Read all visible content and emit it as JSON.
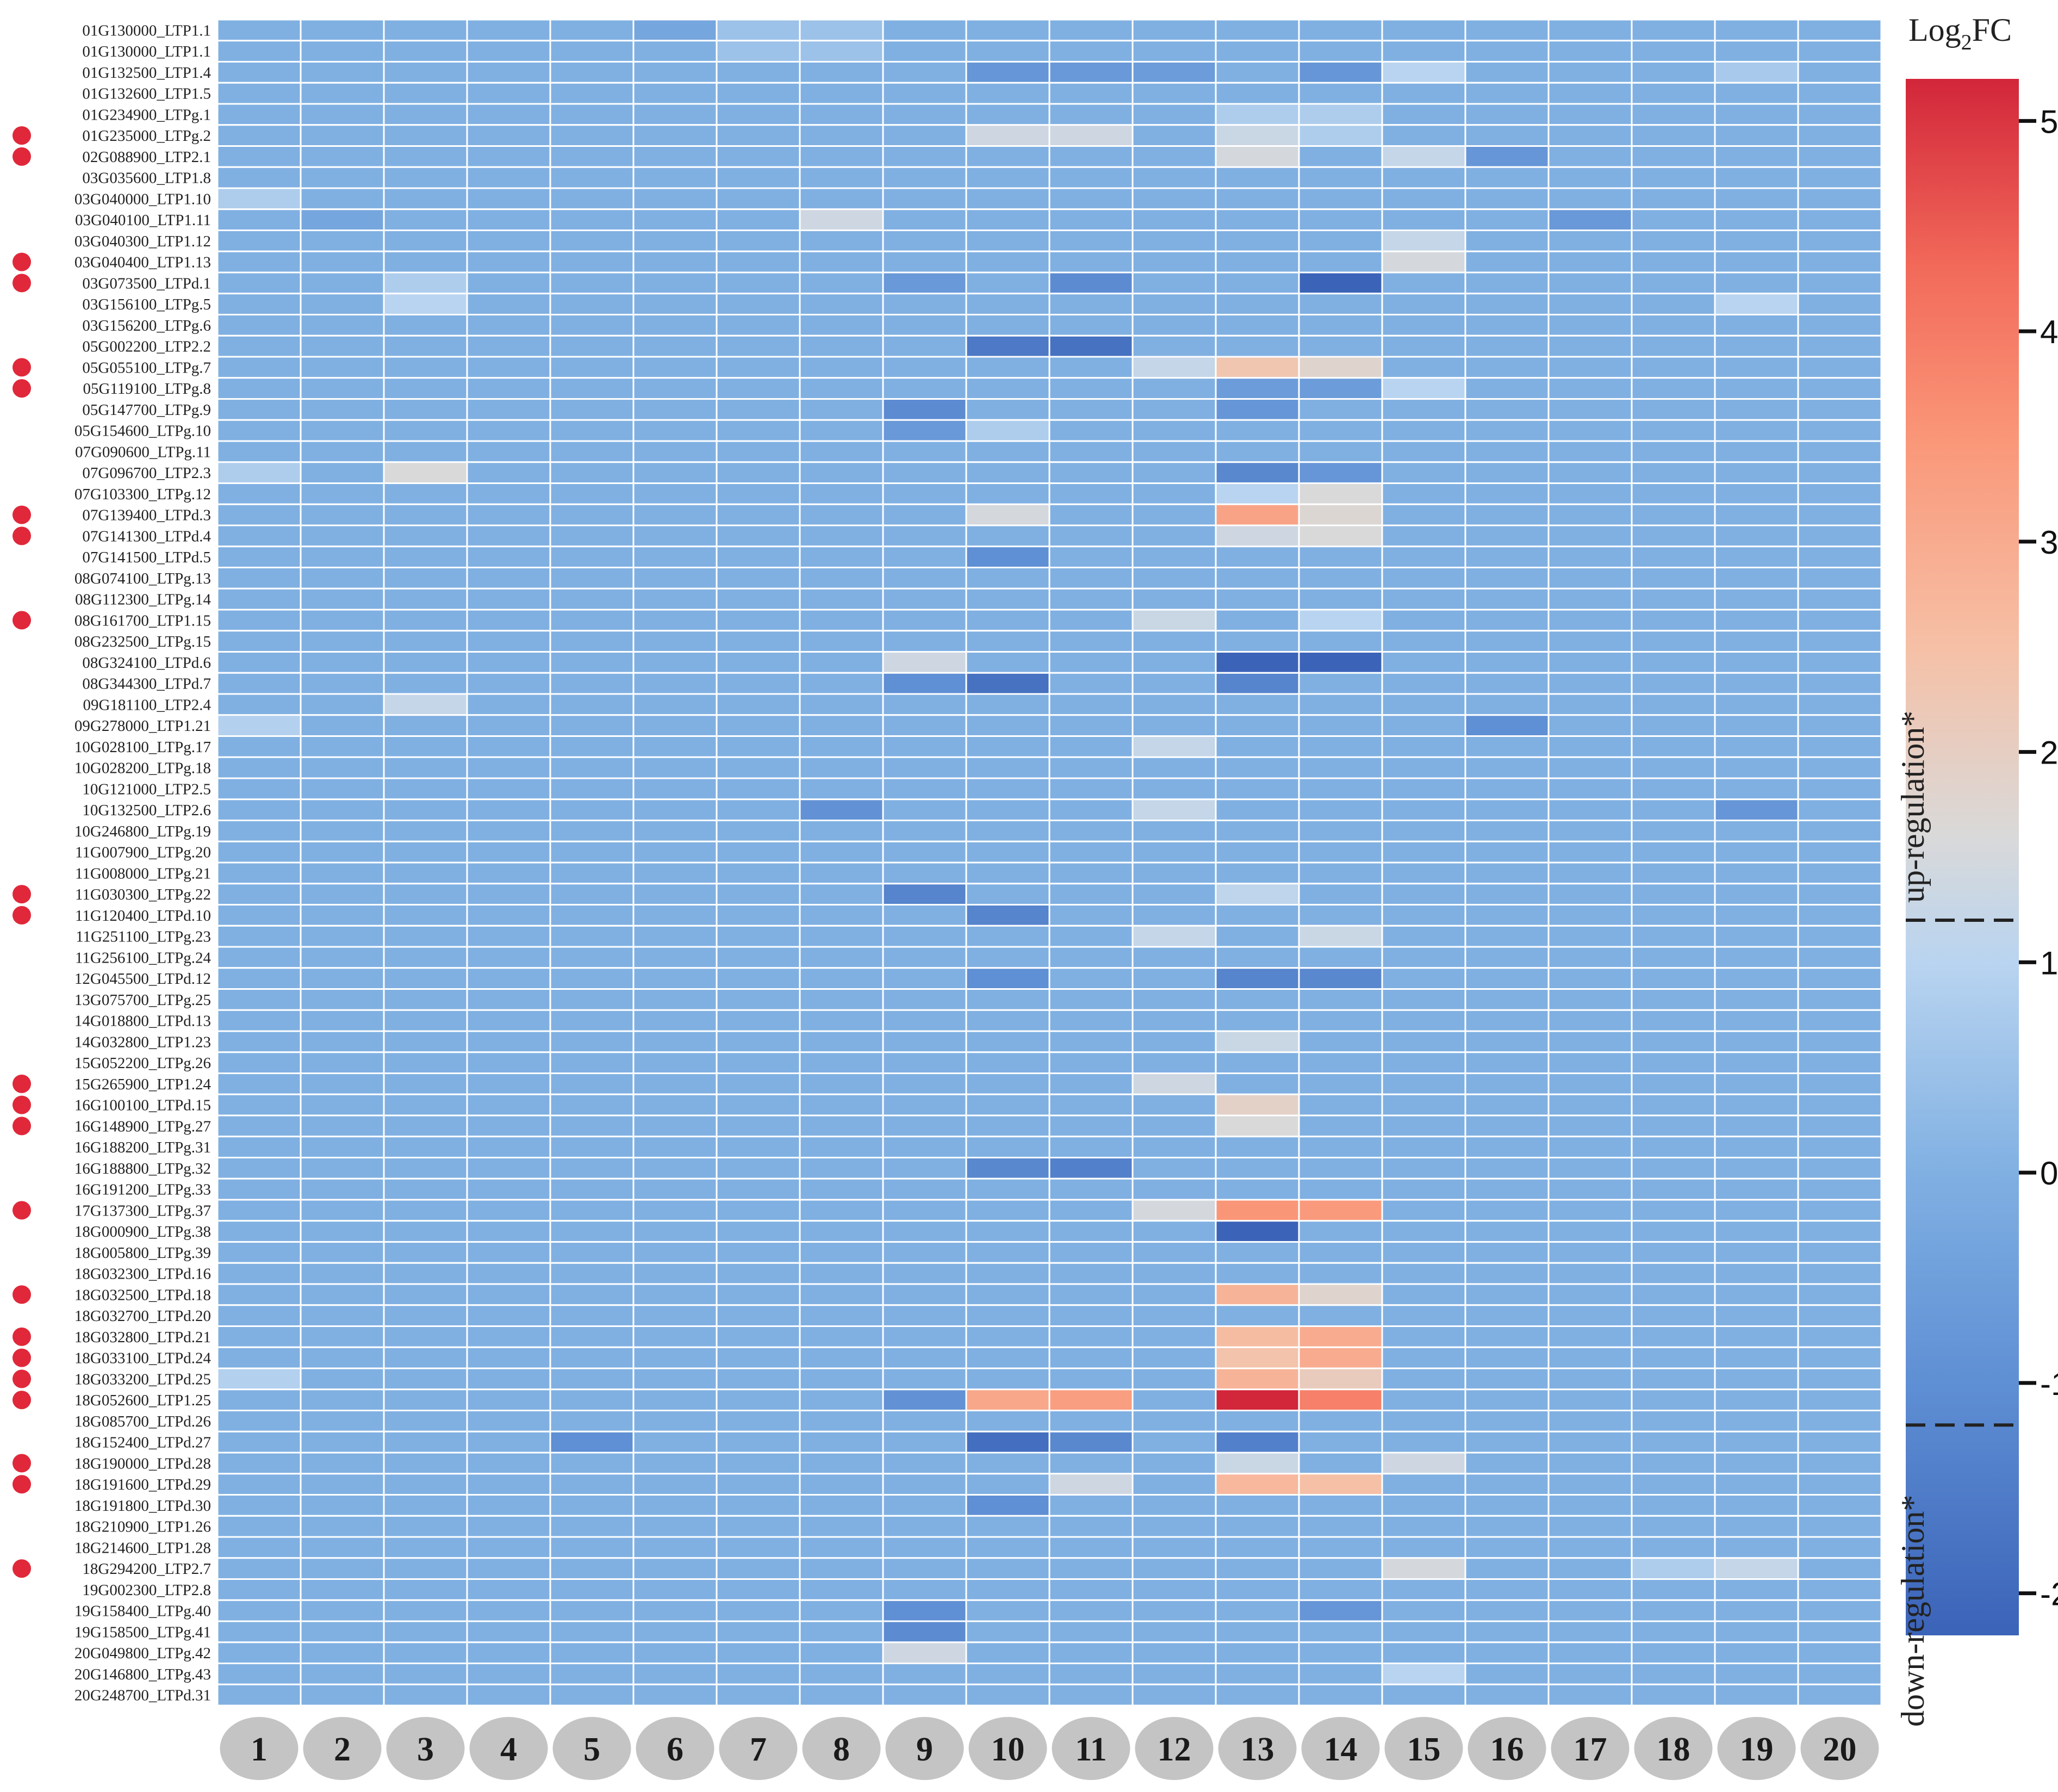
{
  "chart_data": {
    "type": "heatmap",
    "title": "",
    "colorbar": {
      "title_base": "Log",
      "title_sub": "2",
      "title_rest": "FC",
      "range": [
        -2.2,
        5.2
      ],
      "ticks": [
        5,
        4,
        3,
        2,
        1,
        0,
        -1,
        -2
      ],
      "tick_labels": [
        "5",
        "4",
        "3",
        "2",
        "1",
        "0",
        "-1",
        "-2"
      ],
      "stops": [
        {
          "v": -2.2,
          "color": "#3b63b8"
        },
        {
          "v": -1.0,
          "color": "#5f8fd4"
        },
        {
          "v": 0.0,
          "color": "#80b0e2"
        },
        {
          "v": 1.0,
          "color": "#b9d4f0"
        },
        {
          "v": 1.6,
          "color": "#d9d9d9"
        },
        {
          "v": 2.5,
          "color": "#f6c0a6"
        },
        {
          "v": 3.5,
          "color": "#fa9678"
        },
        {
          "v": 4.3,
          "color": "#f26a5a"
        },
        {
          "v": 5.2,
          "color": "#d2263a"
        }
      ],
      "up_threshold": 1.2,
      "down_threshold": -1.2,
      "up_label": "up-regulation*",
      "down_label": "down-regulation*"
    },
    "columns": [
      "1",
      "2",
      "3",
      "4",
      "5",
      "6",
      "7",
      "8",
      "9",
      "10",
      "11",
      "12",
      "13",
      "14",
      "15",
      "16",
      "17",
      "18",
      "19",
      "20"
    ],
    "rows": [
      "01G130000_LTP1.1",
      "01G130000_LTP1.1",
      "01G132500_LTP1.4",
      "01G132600_LTP1.5",
      "01G234900_LTPg.1",
      "01G235000_LTPg.2",
      "02G088900_LTP2.1",
      "03G035600_LTP1.8",
      "03G040000_LTP1.10",
      "03G040100_LTP1.11",
      "03G040300_LTP1.12",
      "03G040400_LTP1.13",
      "03G073500_LTPd.1",
      "03G156100_LTPg.5",
      "03G156200_LTPg.6",
      "05G002200_LTP2.2",
      "05G055100_LTPg.7",
      "05G119100_LTPg.8",
      "05G147700_LTPg.9",
      "05G154600_LTPg.10",
      "07G090600_LTPg.11",
      "07G096700_LTP2.3",
      "07G103300_LTPg.12",
      "07G139400_LTPd.3",
      "07G141300_LTPd.4",
      "07G141500_LTPd.5",
      "08G074100_LTPg.13",
      "08G112300_LTPg.14",
      "08G161700_LTP1.15",
      "08G232500_LTPg.15",
      "08G324100_LTPd.6",
      "08G344300_LTPd.7",
      "09G181100_LTP2.4",
      "09G278000_LTP1.21",
      "10G028100_LTPg.17",
      "10G028200_LTPg.18",
      "10G121000_LTP2.5",
      "10G132500_LTP2.6",
      "10G246800_LTPg.19",
      "11G007900_LTPg.20",
      "11G008000_LTPg.21",
      "11G030300_LTPg.22",
      "11G120400_LTPd.10",
      "11G251100_LTPg.23",
      "11G256100_LTPg.24",
      "12G045500_LTPd.12",
      "13G075700_LTPg.25",
      "14G018800_LTPd.13",
      "14G032800_LTP1.23",
      "15G052200_LTPg.26",
      "15G265900_LTP1.24",
      "16G100100_LTPd.15",
      "16G148900_LTPg.27",
      "16G188200_LTPg.31",
      "16G188800_LTPg.32",
      "16G191200_LTPg.33",
      "17G137300_LTPg.37",
      "18G000900_LTPg.38",
      "18G005800_LTPg.39",
      "18G032300_LTPd.16",
      "18G032500_LTPd.18",
      "18G032700_LTPd.20",
      "18G032800_LTPd.21",
      "18G033100_LTPd.24",
      "18G033200_LTPd.25",
      "18G052600_LTP1.25",
      "18G085700_LTPd.26",
      "18G152400_LTPd.27",
      "18G190000_LTPd.28",
      "18G191600_LTPd.29",
      "18G191800_LTPd.30",
      "18G210900_LTP1.26",
      "18G214600_LTP1.28",
      "18G294200_LTP2.7",
      "19G002300_LTP2.8",
      "19G158400_LTPg.40",
      "19G158500_LTPg.41",
      "20G049800_LTPg.42",
      "20G146800_LTPg.43",
      "20G248700_LTPd.31"
    ],
    "marked_rows": [
      "01G235000_LTPg.2",
      "02G088900_LTP2.1",
      "03G040400_LTP1.13",
      "03G073500_LTPd.1",
      "05G055100_LTPg.7",
      "05G119100_LTPg.8",
      "07G139400_LTPd.3",
      "07G141300_LTPd.4",
      "08G161700_LTP1.15",
      "11G030300_LTPg.22",
      "11G120400_LTPd.10",
      "15G265900_LTP1.24",
      "16G100100_LTPd.15",
      "16G148900_LTPg.27",
      "17G137300_LTPg.37",
      "18G032500_LTPd.18",
      "18G032800_LTPd.21",
      "18G033100_LTPd.24",
      "18G033200_LTPd.25",
      "18G052600_LTP1.25",
      "18G190000_LTPd.28",
      "18G191600_LTPd.29",
      "18G294200_LTP2.7"
    ],
    "marker_color": "#e0283a",
    "default_value": 0.0,
    "values": [
      {
        "row": 0,
        "col": 5,
        "v": -0.3
      },
      {
        "row": 0,
        "col": 6,
        "v": 0.5
      },
      {
        "row": 0,
        "col": 7,
        "v": 0.5
      },
      {
        "row": 1,
        "col": 6,
        "v": 0.5
      },
      {
        "row": 1,
        "col": 7,
        "v": 0.5
      },
      {
        "row": 2,
        "col": 9,
        "v": -0.8
      },
      {
        "row": 2,
        "col": 10,
        "v": -0.7
      },
      {
        "row": 2,
        "col": 11,
        "v": -0.6
      },
      {
        "row": 2,
        "col": 13,
        "v": -0.8
      },
      {
        "row": 2,
        "col": 14,
        "v": 1.0
      },
      {
        "row": 2,
        "col": 18,
        "v": 0.7
      },
      {
        "row": 4,
        "col": 12,
        "v": 0.8
      },
      {
        "row": 4,
        "col": 13,
        "v": 0.8
      },
      {
        "row": 5,
        "col": 9,
        "v": 1.4
      },
      {
        "row": 5,
        "col": 10,
        "v": 1.4
      },
      {
        "row": 5,
        "col": 12,
        "v": 1.3
      },
      {
        "row": 5,
        "col": 13,
        "v": 0.8
      },
      {
        "row": 6,
        "col": 12,
        "v": 1.5
      },
      {
        "row": 6,
        "col": 14,
        "v": 1.2
      },
      {
        "row": 6,
        "col": 15,
        "v": -0.8
      },
      {
        "row": 8,
        "col": 0,
        "v": 0.8
      },
      {
        "row": 9,
        "col": 1,
        "v": -0.3
      },
      {
        "row": 9,
        "col": 7,
        "v": 1.4
      },
      {
        "row": 9,
        "col": 16,
        "v": -0.7
      },
      {
        "row": 10,
        "col": 14,
        "v": 1.2
      },
      {
        "row": 11,
        "col": 14,
        "v": 1.5
      },
      {
        "row": 12,
        "col": 2,
        "v": 0.8
      },
      {
        "row": 12,
        "col": 8,
        "v": -0.7
      },
      {
        "row": 12,
        "col": 10,
        "v": -1.1
      },
      {
        "row": 12,
        "col": 13,
        "v": -2.2
      },
      {
        "row": 13,
        "col": 2,
        "v": 1.0
      },
      {
        "row": 13,
        "col": 18,
        "v": 1.0
      },
      {
        "row": 15,
        "col": 9,
        "v": -1.6
      },
      {
        "row": 15,
        "col": 10,
        "v": -1.8
      },
      {
        "row": 16,
        "col": 11,
        "v": 1.2
      },
      {
        "row": 16,
        "col": 12,
        "v": 2.3
      },
      {
        "row": 16,
        "col": 13,
        "v": 1.8
      },
      {
        "row": 17,
        "col": 12,
        "v": -0.6
      },
      {
        "row": 17,
        "col": 13,
        "v": -0.6
      },
      {
        "row": 17,
        "col": 14,
        "v": 1.0
      },
      {
        "row": 18,
        "col": 8,
        "v": -1.1
      },
      {
        "row": 18,
        "col": 12,
        "v": -0.8
      },
      {
        "row": 19,
        "col": 8,
        "v": -0.7
      },
      {
        "row": 19,
        "col": 9,
        "v": 0.8
      },
      {
        "row": 21,
        "col": 0,
        "v": 0.8
      },
      {
        "row": 21,
        "col": 2,
        "v": 1.6
      },
      {
        "row": 21,
        "col": 12,
        "v": -1.2
      },
      {
        "row": 21,
        "col": 13,
        "v": -0.8
      },
      {
        "row": 22,
        "col": 12,
        "v": 1.0
      },
      {
        "row": 22,
        "col": 13,
        "v": 1.6
      },
      {
        "row": 23,
        "col": 9,
        "v": 1.5
      },
      {
        "row": 23,
        "col": 12,
        "v": 3.2
      },
      {
        "row": 23,
        "col": 13,
        "v": 1.7
      },
      {
        "row": 24,
        "col": 12,
        "v": 1.4
      },
      {
        "row": 24,
        "col": 13,
        "v": 1.6
      },
      {
        "row": 25,
        "col": 9,
        "v": -1.0
      },
      {
        "row": 28,
        "col": 11,
        "v": 1.3
      },
      {
        "row": 28,
        "col": 13,
        "v": 1.0
      },
      {
        "row": 30,
        "col": 8,
        "v": 1.4
      },
      {
        "row": 30,
        "col": 12,
        "v": -2.2
      },
      {
        "row": 30,
        "col": 13,
        "v": -2.3
      },
      {
        "row": 31,
        "col": 8,
        "v": -1.0
      },
      {
        "row": 31,
        "col": 9,
        "v": -1.8
      },
      {
        "row": 31,
        "col": 12,
        "v": -1.3
      },
      {
        "row": 32,
        "col": 2,
        "v": 1.2
      },
      {
        "row": 33,
        "col": 0,
        "v": 0.9
      },
      {
        "row": 33,
        "col": 15,
        "v": -1.0
      },
      {
        "row": 34,
        "col": 11,
        "v": 1.2
      },
      {
        "row": 37,
        "col": 7,
        "v": -0.9
      },
      {
        "row": 37,
        "col": 11,
        "v": 1.2
      },
      {
        "row": 37,
        "col": 18,
        "v": -0.8
      },
      {
        "row": 41,
        "col": 8,
        "v": -1.3
      },
      {
        "row": 41,
        "col": 12,
        "v": 1.1
      },
      {
        "row": 42,
        "col": 9,
        "v": -1.3
      },
      {
        "row": 43,
        "col": 11,
        "v": 1.2
      },
      {
        "row": 43,
        "col": 13,
        "v": 1.3
      },
      {
        "row": 45,
        "col": 9,
        "v": -1.0
      },
      {
        "row": 45,
        "col": 12,
        "v": -1.3
      },
      {
        "row": 45,
        "col": 13,
        "v": -1.2
      },
      {
        "row": 48,
        "col": 12,
        "v": 1.3
      },
      {
        "row": 50,
        "col": 11,
        "v": 1.4
      },
      {
        "row": 51,
        "col": 12,
        "v": 1.9
      },
      {
        "row": 52,
        "col": 12,
        "v": 1.6
      },
      {
        "row": 54,
        "col": 9,
        "v": -1.2
      },
      {
        "row": 54,
        "col": 10,
        "v": -1.4
      },
      {
        "row": 56,
        "col": 11,
        "v": 1.5
      },
      {
        "row": 56,
        "col": 12,
        "v": 3.5
      },
      {
        "row": 56,
        "col": 13,
        "v": 3.4
      },
      {
        "row": 57,
        "col": 12,
        "v": -2.3
      },
      {
        "row": 60,
        "col": 12,
        "v": 2.8
      },
      {
        "row": 60,
        "col": 13,
        "v": 1.8
      },
      {
        "row": 62,
        "col": 12,
        "v": 2.6
      },
      {
        "row": 62,
        "col": 13,
        "v": 3.0
      },
      {
        "row": 63,
        "col": 12,
        "v": 2.4
      },
      {
        "row": 63,
        "col": 13,
        "v": 3.0
      },
      {
        "row": 64,
        "col": 0,
        "v": 0.9
      },
      {
        "row": 64,
        "col": 12,
        "v": 2.8
      },
      {
        "row": 64,
        "col": 13,
        "v": 2.1
      },
      {
        "row": 65,
        "col": 8,
        "v": -0.9
      },
      {
        "row": 65,
        "col": 9,
        "v": 3.1
      },
      {
        "row": 65,
        "col": 10,
        "v": 3.3
      },
      {
        "row": 65,
        "col": 12,
        "v": 5.2
      },
      {
        "row": 65,
        "col": 13,
        "v": 3.9
      },
      {
        "row": 67,
        "col": 4,
        "v": -1.0
      },
      {
        "row": 67,
        "col": 9,
        "v": -1.9
      },
      {
        "row": 67,
        "col": 10,
        "v": -1.2
      },
      {
        "row": 67,
        "col": 12,
        "v": -1.4
      },
      {
        "row": 68,
        "col": 12,
        "v": 1.3
      },
      {
        "row": 68,
        "col": 14,
        "v": 1.4
      },
      {
        "row": 69,
        "col": 10,
        "v": 1.4
      },
      {
        "row": 69,
        "col": 12,
        "v": 2.7
      },
      {
        "row": 69,
        "col": 13,
        "v": 2.5
      },
      {
        "row": 70,
        "col": 9,
        "v": -1.0
      },
      {
        "row": 73,
        "col": 14,
        "v": 1.5
      },
      {
        "row": 73,
        "col": 17,
        "v": 0.8
      },
      {
        "row": 73,
        "col": 18,
        "v": 1.2
      },
      {
        "row": 75,
        "col": 8,
        "v": -1.0
      },
      {
        "row": 75,
        "col": 13,
        "v": -0.8
      },
      {
        "row": 76,
        "col": 8,
        "v": -1.1
      },
      {
        "row": 77,
        "col": 8,
        "v": 1.4
      },
      {
        "row": 78,
        "col": 14,
        "v": 1.0
      }
    ]
  }
}
